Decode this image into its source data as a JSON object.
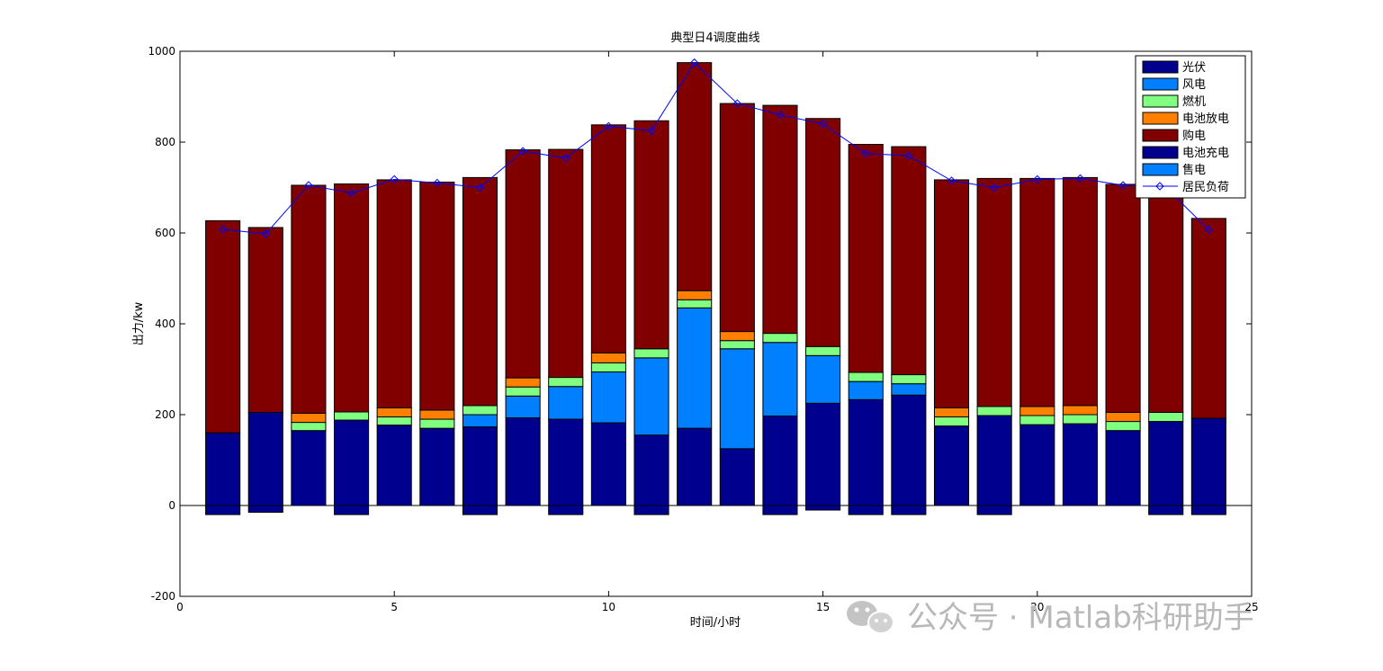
{
  "chart_data": {
    "type": "bar",
    "stacked": true,
    "title": "典型日4调度曲线",
    "xlabel": "时间/小时",
    "ylabel": "出力/kw",
    "xlim": [
      0,
      25
    ],
    "ylim": [
      -200,
      1000
    ],
    "xticks": [
      0,
      5,
      10,
      15,
      20,
      25
    ],
    "yticks": [
      -200,
      0,
      200,
      400,
      600,
      800,
      1000
    ],
    "grid": false,
    "legend_position": "top-right",
    "x": [
      1,
      2,
      3,
      4,
      5,
      6,
      7,
      8,
      9,
      10,
      11,
      12,
      13,
      14,
      15,
      16,
      17,
      18,
      19,
      20,
      21,
      22,
      23,
      24
    ],
    "series": [
      {
        "name": "光伏",
        "color": "#00008f",
        "kind": "bar",
        "values": [
          160,
          205,
          165,
          188,
          177,
          170,
          173,
          193,
          190,
          182,
          155,
          170,
          125,
          197,
          225,
          233,
          243,
          175,
          198,
          178,
          180,
          165,
          185,
          192
        ]
      },
      {
        "name": "风电",
        "color": "#0080ff",
        "kind": "bar",
        "values": [
          0,
          0,
          0,
          0,
          0,
          0,
          27,
          48,
          72,
          112,
          170,
          265,
          220,
          162,
          105,
          40,
          25,
          0,
          0,
          0,
          0,
          0,
          0,
          0
        ]
      },
      {
        "name": "燃机",
        "color": "#80ff80",
        "kind": "bar",
        "values": [
          0,
          0,
          18,
          18,
          18,
          20,
          20,
          20,
          20,
          20,
          20,
          18,
          18,
          20,
          20,
          20,
          20,
          20,
          20,
          20,
          20,
          20,
          20,
          0
        ]
      },
      {
        "name": "电池放电",
        "color": "#ff8000",
        "kind": "bar",
        "values": [
          0,
          0,
          20,
          0,
          20,
          20,
          0,
          20,
          0,
          22,
          0,
          20,
          20,
          0,
          0,
          0,
          0,
          20,
          0,
          20,
          20,
          20,
          0,
          0
        ]
      },
      {
        "name": "购电",
        "color": "#800000",
        "kind": "bar",
        "values": [
          467,
          407,
          502,
          502,
          502,
          502,
          502,
          502,
          502,
          502,
          502,
          502,
          502,
          502,
          502,
          502,
          502,
          502,
          502,
          502,
          502,
          502,
          502,
          440
        ]
      },
      {
        "name": "电池充电",
        "color": "#00008f",
        "kind": "bar",
        "values": [
          -20,
          -15,
          0,
          -20,
          0,
          0,
          -20,
          0,
          -20,
          0,
          -20,
          0,
          0,
          -20,
          -10,
          -20,
          -20,
          0,
          -20,
          0,
          0,
          0,
          -20,
          -20
        ]
      },
      {
        "name": "售电",
        "color": "#0080ff",
        "kind": "bar",
        "values": [
          0,
          0,
          0,
          0,
          0,
          0,
          0,
          0,
          0,
          0,
          0,
          0,
          0,
          0,
          0,
          0,
          0,
          0,
          0,
          0,
          0,
          0,
          0,
          0
        ]
      },
      {
        "name": "居民负荷",
        "color": "#0000ff",
        "kind": "line",
        "values": [
          608,
          598,
          705,
          688,
          718,
          710,
          700,
          780,
          765,
          835,
          825,
          975,
          885,
          860,
          840,
          775,
          770,
          715,
          700,
          718,
          720,
          705,
          700,
          607
        ]
      }
    ]
  },
  "watermark": {
    "text": "公众号 · Matlab科研助手",
    "icon": "wechat-icon"
  }
}
